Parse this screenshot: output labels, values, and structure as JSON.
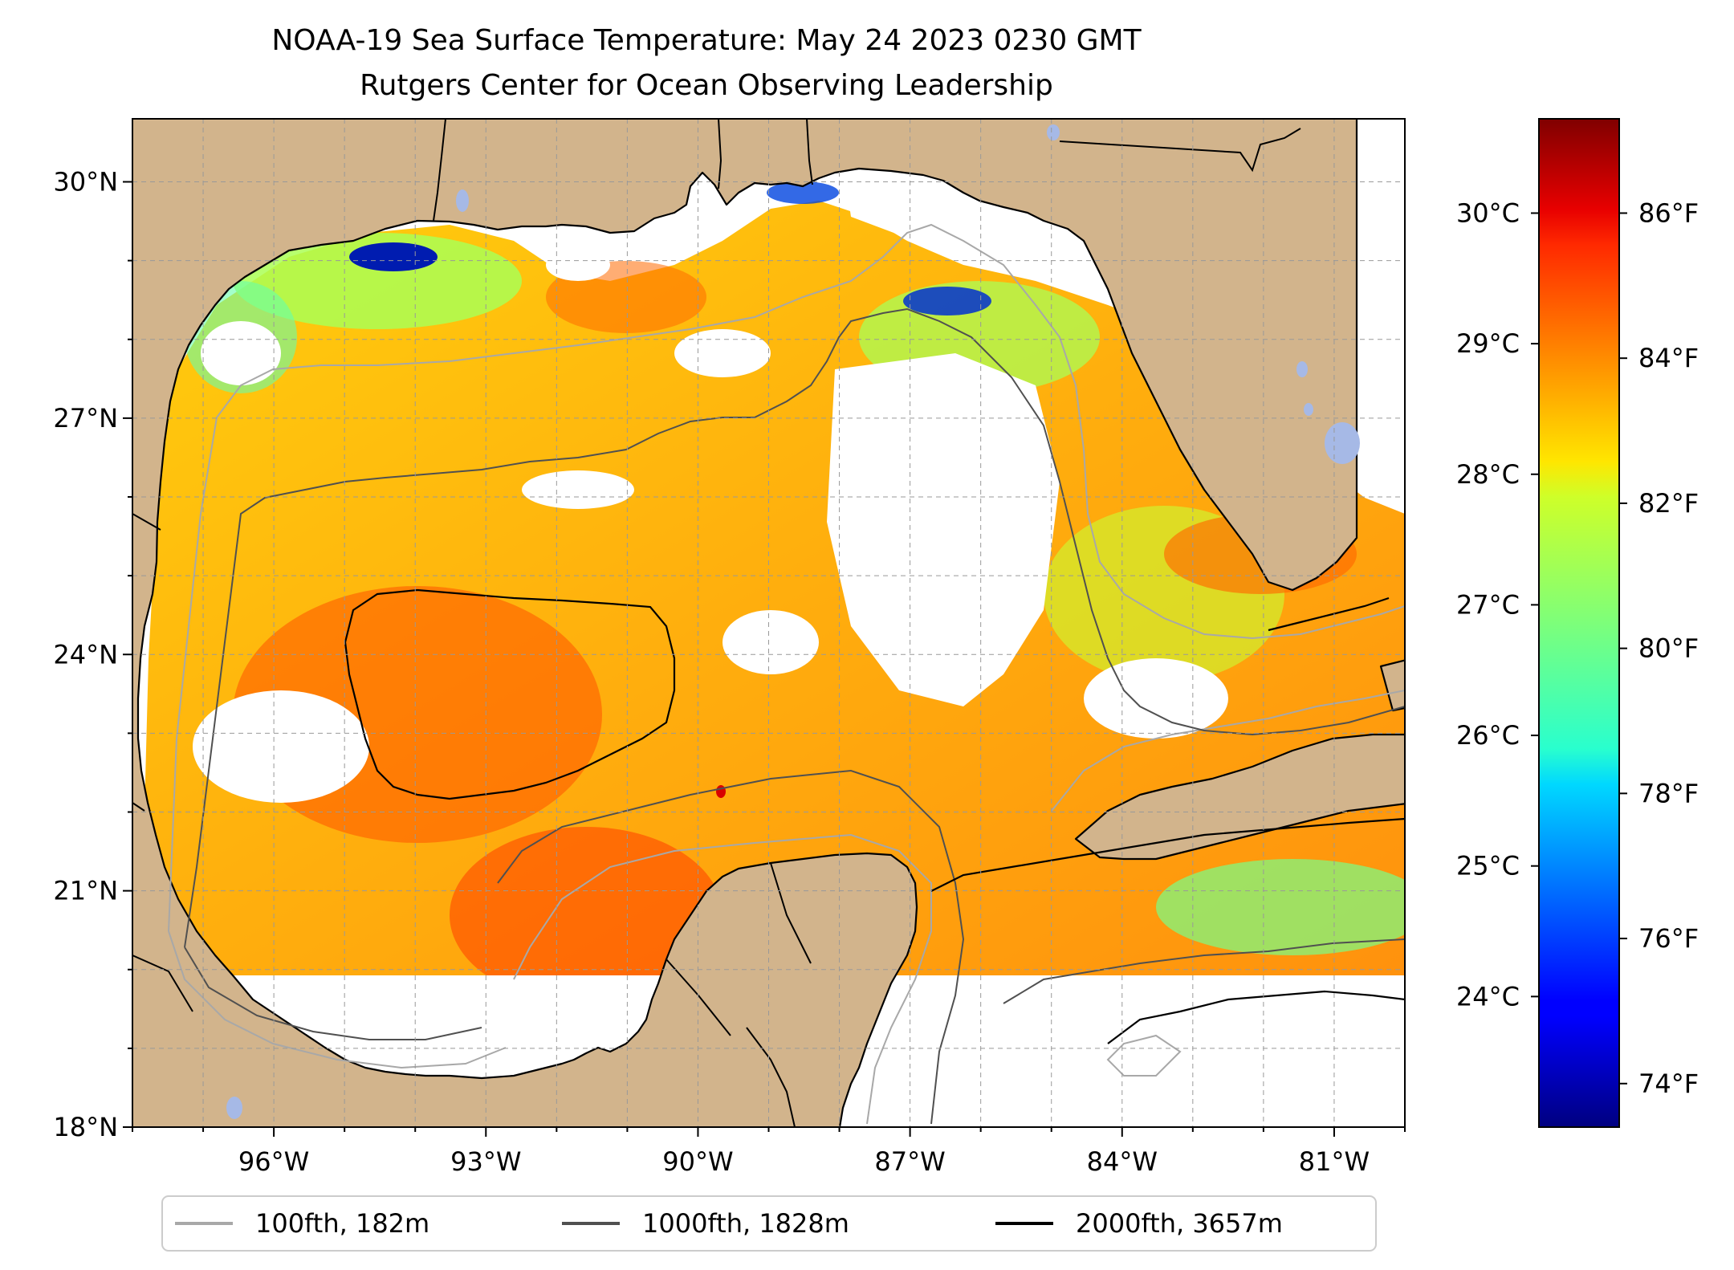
{
  "title": {
    "line1": "NOAA-19 Sea Surface Temperature: May 24 2023 0230 GMT",
    "line2": "Rutgers Center for Ocean Observing Leadership"
  },
  "map": {
    "lon_range": [
      -98.0,
      -80.0
    ],
    "lat_range": [
      18.0,
      30.8
    ],
    "lon_ticks": [
      {
        "value": -96,
        "label": "96°W"
      },
      {
        "value": -93,
        "label": "93°W"
      },
      {
        "value": -90,
        "label": "90°W"
      },
      {
        "value": -87,
        "label": "87°W"
      },
      {
        "value": -84,
        "label": "84°W"
      },
      {
        "value": -81,
        "label": "81°W"
      }
    ],
    "lat_ticks": [
      {
        "value": 18,
        "label": "18°N"
      },
      {
        "value": 21,
        "label": "21°N"
      },
      {
        "value": 24,
        "label": "24°N"
      },
      {
        "value": 27,
        "label": "27°N"
      },
      {
        "value": 30,
        "label": "30°N"
      }
    ],
    "grid": "dashed",
    "land_color": "#d2b48c",
    "no_data_color": "#ffffff"
  },
  "colorbar": {
    "colormap": "jet",
    "orientation": "vertical",
    "fahrenheit_range": [
      73.4,
      87.3
    ],
    "celsius_labels": [
      "24°C",
      "25°C",
      "26°C",
      "27°C",
      "28°C",
      "29°C",
      "30°C"
    ],
    "celsius_values": [
      24,
      25,
      26,
      27,
      28,
      29,
      30
    ],
    "fahrenheit_labels": [
      "74°F",
      "76°F",
      "78°F",
      "80°F",
      "82°F",
      "84°F",
      "86°F"
    ],
    "fahrenheit_values": [
      74,
      76,
      78,
      80,
      82,
      84,
      86
    ]
  },
  "legend": {
    "placement": "bottom-center",
    "items": [
      {
        "label": "100fth, 182m",
        "color": "#a8a8a8"
      },
      {
        "label": "1000fth, 1828m",
        "color": "#505050"
      },
      {
        "label": "2000fth, 3657m",
        "color": "#000000"
      }
    ]
  }
}
